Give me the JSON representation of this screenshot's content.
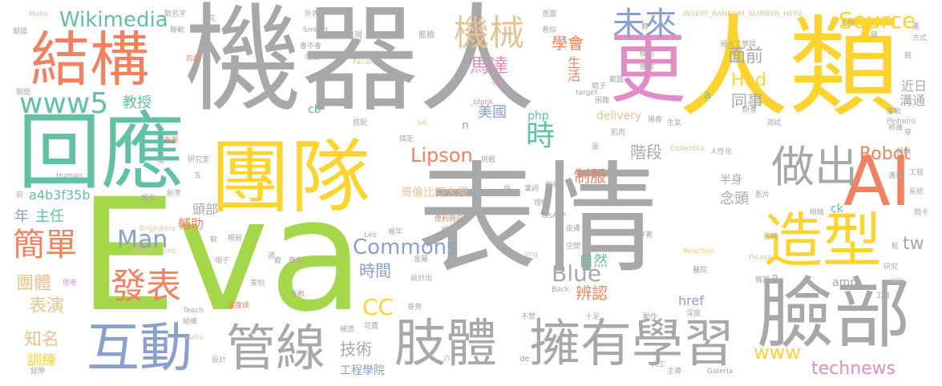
{
  "palette": {
    "gray": "#a8a8a8",
    "yellow": "#fdd42f",
    "orange": "#f2825f",
    "teal": "#62c1a4",
    "green": "#a5d74a",
    "blue": "#8a9fcc",
    "pink": "#e28cc5",
    "tan": "#e5c494"
  },
  "words": [
    {
      "text": "機器人",
      "color": "gray"
    },
    {
      "text": "表情",
      "color": "gray"
    },
    {
      "text": "Eva",
      "color": "green"
    },
    {
      "text": "人類",
      "color": "yellow"
    },
    {
      "text": "團隊",
      "color": "yellow"
    },
    {
      "text": "回應",
      "color": "teal"
    },
    {
      "text": "結構",
      "color": "orange"
    },
    {
      "text": "臉部",
      "color": "gray"
    },
    {
      "text": "更",
      "color": "pink"
    },
    {
      "text": "互動",
      "color": "blue"
    },
    {
      "text": "管線",
      "color": "gray"
    },
    {
      "text": "肢體",
      "color": "gray"
    },
    {
      "text": "擁有學習",
      "color": "gray"
    },
    {
      "text": "造型",
      "color": "yellow"
    },
    {
      "text": "AI",
      "color": "orange"
    },
    {
      "text": "做出",
      "color": "gray"
    },
    {
      "text": "www5",
      "color": "teal"
    },
    {
      "text": "簡單",
      "color": "orange"
    },
    {
      "text": "發表",
      "color": "orange"
    },
    {
      "text": "機械",
      "color": "tan"
    },
    {
      "text": "未來",
      "color": "blue"
    },
    {
      "text": "Wikimedia",
      "color": "teal"
    },
    {
      "text": "Source",
      "color": "yellow"
    },
    {
      "text": "時",
      "color": "teal"
    },
    {
      "text": "Man",
      "color": "blue"
    },
    {
      "text": "Lipson",
      "color": "orange"
    },
    {
      "text": "Commons",
      "color": "blue"
    },
    {
      "text": "Blue",
      "color": "gray"
    },
    {
      "text": "CC",
      "color": "yellow"
    },
    {
      "text": "technews",
      "color": "pink"
    },
    {
      "text": "www",
      "color": "yellow"
    },
    {
      "text": "Robot",
      "color": "orange"
    },
    {
      "text": "tw",
      "color": "gray"
    },
    {
      "text": "面前",
      "color": "gray"
    },
    {
      "text": "Hod",
      "color": "yellow"
    },
    {
      "text": "同事",
      "color": "gray"
    },
    {
      "text": "學會",
      "color": "orange"
    },
    {
      "text": "馬達",
      "color": "pink"
    },
    {
      "text": "生活",
      "color": "orange"
    },
    {
      "text": "教授",
      "color": "teal"
    },
    {
      "text": "美國",
      "color": "blue"
    },
    {
      "text": "階段",
      "color": "gray"
    },
    {
      "text": "制服",
      "color": "orange"
    },
    {
      "text": "時間",
      "color": "blue"
    },
    {
      "text": "技術",
      "color": "gray"
    },
    {
      "text": "表演",
      "color": "tan"
    },
    {
      "text": "團體",
      "color": "tan"
    },
    {
      "text": "知名",
      "color": "tan"
    },
    {
      "text": "訓練",
      "color": "yellow"
    },
    {
      "text": "主任",
      "color": "teal"
    },
    {
      "text": "年",
      "color": "blue"
    },
    {
      "text": "a4b3f35b",
      "color": "teal"
    },
    {
      "text": "頭部",
      "color": "gray"
    },
    {
      "text": "輔助",
      "color": "orange"
    },
    {
      "text": "念頭",
      "color": "gray"
    },
    {
      "text": "半身",
      "color": "gray"
    },
    {
      "text": "哥倫比亞大學",
      "color": "tan"
    },
    {
      "text": "自然",
      "color": "teal"
    },
    {
      "text": "辨認",
      "color": "orange"
    },
    {
      "text": "php",
      "color": "teal"
    },
    {
      "text": "delivery",
      "color": "tan"
    },
    {
      "text": "近日",
      "color": "gray"
    },
    {
      "text": "溝通",
      "color": "gray"
    },
    {
      "text": "工程學院",
      "color": "blue"
    },
    {
      "text": "href",
      "color": "blue"
    },
    {
      "text": "amp",
      "color": "gray"
    },
    {
      "text": "ck",
      "color": "teal"
    },
    {
      "text": "cb",
      "color": "teal"
    },
    {
      "text": "n",
      "color": "gray"
    },
    {
      "text": "a",
      "color": "teal"
    },
    {
      "text": "Make",
      "color": "tan"
    },
    {
      "text": "取名字",
      "color": "gray"
    },
    {
      "text": "花",
      "color": "gray"
    },
    {
      "text": "外表",
      "color": "gray"
    },
    {
      "text": "首圖",
      "color": "gray"
    },
    {
      "text": "INSERT_RANDOM_NUMBER_HERE",
      "color": "tan"
    },
    {
      "text": "工作",
      "color": "gray"
    },
    {
      "text": "Smiled",
      "color": "gray"
    },
    {
      "text": "發現",
      "color": "gray"
    },
    {
      "text": "藍臉",
      "color": "gray"
    },
    {
      "text": "看似",
      "color": "gray"
    },
    {
      "text": "Facial",
      "color": "tan"
    },
    {
      "text": "_blank",
      "color": "pink"
    },
    {
      "text": "target",
      "color": "gray"
    },
    {
      "text": "SA",
      "color": "tan"
    },
    {
      "text": "Pinheiro",
      "color": "gray"
    },
    {
      "text": "Human",
      "color": "gray"
    },
    {
      "text": "Engineers",
      "color": "tan"
    },
    {
      "text": "Expressions",
      "color": "tan"
    },
    {
      "text": "Teach",
      "color": "gray"
    },
    {
      "text": "Galeria",
      "color": "gray"
    },
    {
      "text": "Reactive",
      "color": "yellow"
    },
    {
      "text": "Picasa",
      "color": "tan"
    },
    {
      "text": "src",
      "color": "tan"
    },
    {
      "text": "Columbia",
      "color": "tan"
    },
    {
      "text": "GSAPP",
      "color": "gray"
    },
    {
      "text": "Léo",
      "color": "gray"
    },
    {
      "text": "img",
      "color": "tan"
    },
    {
      "text": "Back",
      "color": "gray"
    },
    {
      "text": "deliv",
      "color": "tan"
    },
    {
      "text": "de",
      "color": "blue"
    },
    {
      "text": "研究室",
      "color": "gray"
    },
    {
      "text": "來源",
      "color": "orange"
    },
    {
      "text": "頭部",
      "color": "gray"
    },
    {
      "text": "研發",
      "color": "gray"
    },
    {
      "text": "測試",
      "color": "gray"
    },
    {
      "text": "便利商店",
      "color": "orange"
    },
    {
      "text": "皮膚",
      "color": "gray"
    },
    {
      "text": "空間",
      "color": "gray"
    },
    {
      "text": "醫院",
      "color": "gray"
    },
    {
      "text": "工廠",
      "color": "gray"
    },
    {
      "text": "研究",
      "color": "gray"
    },
    {
      "text": "機器",
      "color": "gray"
    },
    {
      "text": "設計出",
      "color": "gray"
    },
    {
      "text": "連接成",
      "color": "orange"
    },
    {
      "text": "商店",
      "color": "pink"
    },
    {
      "text": "害怕",
      "color": "gray"
    },
    {
      "text": "喜歡",
      "color": "gray"
    },
    {
      "text": "十足",
      "color": "gray"
    },
    {
      "text": "動作",
      "color": "gray"
    },
    {
      "text": "深度",
      "color": "gray"
    },
    {
      "text": "主導",
      "color": "gray"
    },
    {
      "text": "人工",
      "color": "gray"
    },
    {
      "text": "設計",
      "color": "gray"
    },
    {
      "text": "延伸",
      "color": "gray"
    },
    {
      "text": "組織",
      "color": "gray"
    },
    {
      "text": "補貨",
      "color": "gray"
    },
    {
      "text": "花費",
      "color": "gray"
    },
    {
      "text": "六",
      "color": "gray"
    },
    {
      "text": "不禁",
      "color": "gray"
    },
    {
      "text": "金屬",
      "color": "gray"
    },
    {
      "text": "身旁",
      "color": "gray"
    },
    {
      "text": "帽子",
      "color": "gray"
    },
    {
      "text": "眼前",
      "color": "gray"
    },
    {
      "text": "穿著",
      "color": "gray"
    },
    {
      "text": "名牌",
      "color": "gray"
    },
    {
      "text": "眼睛",
      "color": "gray"
    },
    {
      "text": "影片",
      "color": "gray"
    },
    {
      "text": "系統",
      "color": "gray"
    },
    {
      "text": "工程",
      "color": "gray"
    },
    {
      "text": "辨識",
      "color": "gray"
    },
    {
      "text": "柔軟",
      "color": "gray"
    },
    {
      "text": "哥大工學院",
      "color": "gray"
    },
    {
      "text": "方式",
      "color": "gray"
    },
    {
      "text": "畫",
      "color": "gray"
    },
    {
      "text": "臉",
      "color": "gray"
    },
    {
      "text": "錄",
      "color": "gray"
    },
    {
      "text": "模仿",
      "color": "gray"
    },
    {
      "text": "播放",
      "color": "gray"
    },
    {
      "text": "截圖",
      "color": "gray"
    },
    {
      "text": "困難",
      "color": "gray"
    },
    {
      "text": "陽春",
      "color": "gray"
    },
    {
      "text": "肌肉",
      "color": "gray"
    },
    {
      "text": "生氣",
      "color": "gray"
    },
    {
      "text": "類似",
      "color": "gray"
    },
    {
      "text": "人性化",
      "color": "gray"
    },
    {
      "text": "溝通",
      "color": "gray"
    },
    {
      "text": "挑戰",
      "color": "gray"
    },
    {
      "text": "搞定",
      "color": "gray"
    },
    {
      "text": "搭配",
      "color": "gray"
    },
    {
      "text": "不停",
      "color": "pink"
    },
    {
      "text": "鏡子",
      "color": "gray"
    },
    {
      "text": "會不會",
      "color": "gray"
    },
    {
      "text": "往後",
      "color": "gray"
    },
    {
      "text": "匹配",
      "color": "orange"
    },
    {
      "text": "聯動",
      "color": "gray"
    },
    {
      "text": "期間",
      "color": "gray"
    },
    {
      "text": "鄰國",
      "color": "gray"
    },
    {
      "text": "項",
      "color": "gray"
    },
    {
      "text": "五",
      "color": "gray"
    },
    {
      "text": "前",
      "color": "gray"
    },
    {
      "text": "概念",
      "color": "gray"
    },
    {
      "text": "創意",
      "color": "gray"
    },
    {
      "text": "軟",
      "color": "gray"
    },
    {
      "text": "思考",
      "color": "pink"
    },
    {
      "text": "週",
      "color": "gray"
    },
    {
      "text": "戴",
      "color": "gray"
    },
    {
      "text": "說",
      "color": "gray"
    },
    {
      "text": "張",
      "color": "gray"
    },
    {
      "text": "業詞",
      "color": "gray"
    },
    {
      "text": "強骨",
      "color": "gray"
    },
    {
      "text": "理解",
      "color": "gray"
    },
    {
      "text": "順利",
      "color": "gray"
    },
    {
      "text": "幾年",
      "color": "gray"
    },
    {
      "text": "身",
      "color": "gray"
    },
    {
      "text": "夥",
      "color": "gray"
    },
    {
      "text": "間卡",
      "color": "gray"
    },
    {
      "text": "鬆",
      "color": "gray"
    },
    {
      "text": "穿",
      "color": "gray"
    }
  ]
}
